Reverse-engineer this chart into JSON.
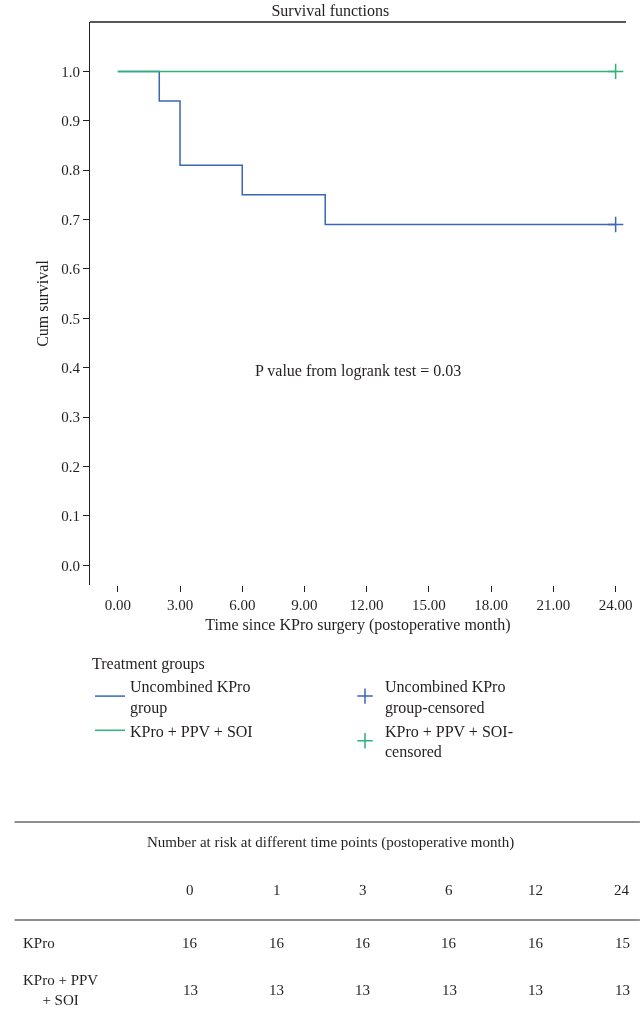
{
  "chart_data": [
    {
      "type": "step",
      "title": "Survival functions",
      "xlabel": "Time since KPro surgery (postoperative month)",
      "ylabel": "Cum survival",
      "legend_title": "Treatment groups",
      "series": [
        {
          "name": "Uncombined KPro group",
          "color": "#3a66b5",
          "x": [
            0,
            2,
            3,
            6,
            10,
            24
          ],
          "values": [
            1.0,
            0.94,
            0.81,
            0.75,
            0.69,
            0.69
          ]
        },
        {
          "name": "Uncombined KPro group-censored",
          "color": "#3a66b5",
          "type": "scatter",
          "marker": "cross",
          "x": [
            24
          ],
          "values": [
            0.69
          ]
        },
        {
          "name": "KPro + PPV + SOI",
          "color": "#2db37a",
          "x": [
            0,
            24
          ],
          "values": [
            1.0,
            1.0
          ]
        },
        {
          "name": "KPro + PPV + SOI-censored",
          "color": "#2db37a",
          "type": "scatter",
          "marker": "cross",
          "x": [
            24
          ],
          "values": [
            1.0
          ]
        }
      ],
      "xlim": [
        -1.34,
        24.5
      ],
      "xticks": [
        {
          "value": 0,
          "label": "0.00"
        },
        {
          "value": 3,
          "label": "3.00"
        },
        {
          "value": 6,
          "label": "6.00"
        },
        {
          "value": 9,
          "label": "9.00"
        },
        {
          "value": 12,
          "label": "12.00"
        },
        {
          "value": 15,
          "label": "15.00"
        },
        {
          "value": 18,
          "label": "18.00"
        },
        {
          "value": 21,
          "label": "21.00"
        },
        {
          "value": 24,
          "label": "24.00"
        }
      ],
      "ylim": [
        -0.04,
        1.1
      ],
      "yticks": [
        {
          "value": 0,
          "label": "0.0"
        },
        {
          "value": 0.1,
          "label": "0.1"
        },
        {
          "value": 0.2,
          "label": "0.2"
        },
        {
          "value": 0.3,
          "label": "0.3"
        },
        {
          "value": 0.4,
          "label": "0.4"
        },
        {
          "value": 0.5,
          "label": "0.5"
        },
        {
          "value": 0.6,
          "label": "0.6"
        },
        {
          "value": 0.7,
          "label": "0.7"
        },
        {
          "value": 0.8,
          "label": "0.8"
        },
        {
          "value": 0.9,
          "label": "0.9"
        },
        {
          "value": 1.0,
          "label": "1.0"
        }
      ],
      "annotations": [
        "P value from logrank test = 0.03"
      ],
      "legend": "bottom"
    },
    {
      "type": "other",
      "title": "Number at risk at different time points (postoperative month)",
      "categories": [
        "0",
        "1",
        "3",
        "6",
        "12",
        "24"
      ],
      "series": [
        {
          "name": "KPro",
          "values": [
            16,
            16,
            16,
            16,
            16,
            15
          ]
        },
        {
          "name": "KPro + PPV + SOI",
          "values": [
            13,
            13,
            13,
            13,
            13,
            13
          ]
        }
      ],
      "data_labels": true
    }
  ]
}
